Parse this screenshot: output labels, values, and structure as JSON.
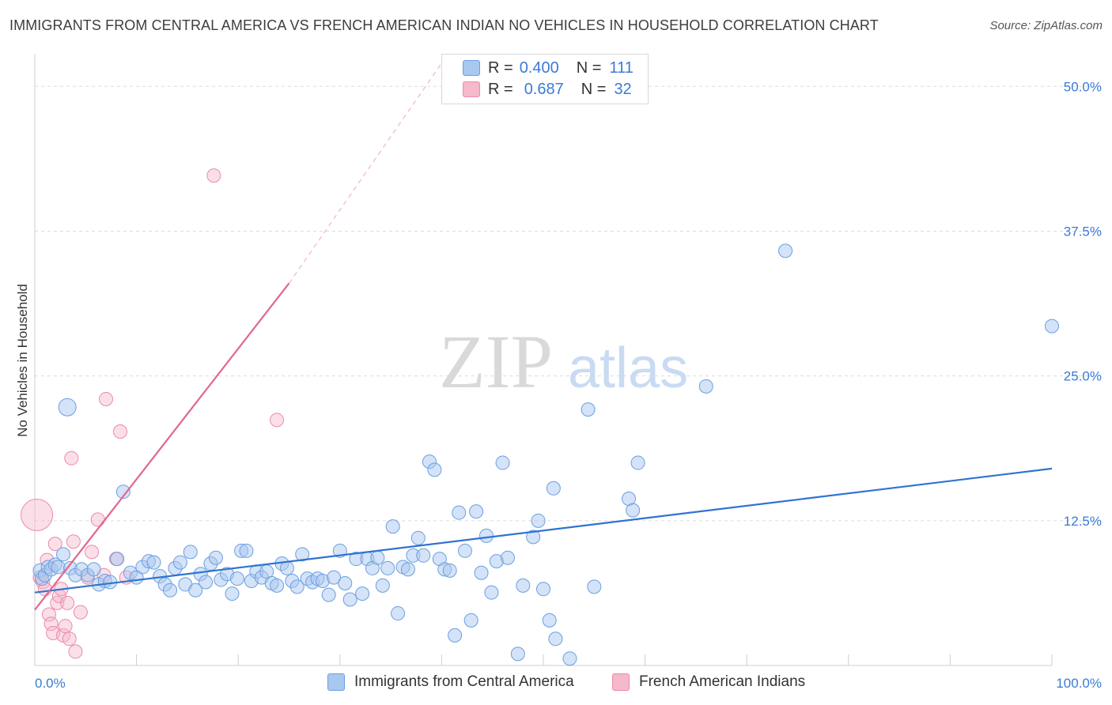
{
  "title": "IMMIGRANTS FROM CENTRAL AMERICA VS FRENCH AMERICAN INDIAN NO VEHICLES IN HOUSEHOLD CORRELATION CHART",
  "source": "Source: ZipAtlas.com",
  "watermark": {
    "zip": "ZIP",
    "atlas": "atlas"
  },
  "legend": {
    "rows": [
      {
        "r_label": "R =",
        "r_value": "0.400",
        "n_label": "N =",
        "n_value": "111"
      },
      {
        "r_label": "R =",
        "r_value": "0.687",
        "n_label": "N =",
        "n_value": "32"
      }
    ]
  },
  "colors": {
    "blue_fill": "#a9c8f0",
    "blue_stroke": "#6b9fe0",
    "blue_line": "#2f73d0",
    "pink_fill": "#f6b8cb",
    "pink_stroke": "#ec8aa8",
    "pink_line": "#e2668f",
    "tick_text": "#3a7bd5",
    "grid": "#dcdcdc"
  },
  "chart_data": {
    "type": "scatter",
    "title": "IMMIGRANTS FROM CENTRAL AMERICA VS FRENCH AMERICAN INDIAN NO VEHICLES IN HOUSEHOLD CORRELATION CHART",
    "xlabel": "",
    "ylabel": "No Vehicles in Household",
    "xlim": [
      0,
      100
    ],
    "ylim": [
      0,
      52
    ],
    "x_tick_labels": [
      "0.0%",
      "100.0%"
    ],
    "y_ticks": [
      12.5,
      25.0,
      37.5,
      50.0
    ],
    "y_tick_labels": [
      "12.5%",
      "25.0%",
      "37.5%",
      "50.0%"
    ],
    "grid": true,
    "legend_position": "top-center",
    "series": [
      {
        "name": "Immigrants from Central America",
        "trend": {
          "x": [
            0,
            100
          ],
          "y": [
            6.3,
            17.0
          ]
        },
        "points": [
          [
            0.5,
            8.2
          ],
          [
            0.7,
            7.5
          ],
          [
            1.0,
            7.8
          ],
          [
            1.3,
            8.5
          ],
          [
            1.6,
            8.3
          ],
          [
            2.0,
            8.7
          ],
          [
            2.3,
            8.5
          ],
          [
            2.8,
            9.6
          ],
          [
            3.2,
            22.3
          ],
          [
            3.5,
            8.4
          ],
          [
            4.0,
            7.8
          ],
          [
            4.6,
            8.3
          ],
          [
            5.2,
            7.8
          ],
          [
            5.8,
            8.3
          ],
          [
            6.3,
            7.0
          ],
          [
            6.9,
            7.3
          ],
          [
            7.4,
            7.2
          ],
          [
            8.1,
            9.2
          ],
          [
            8.7,
            15.0
          ],
          [
            9.4,
            8.0
          ],
          [
            10.0,
            7.6
          ],
          [
            10.6,
            8.5
          ],
          [
            11.2,
            9.0
          ],
          [
            11.7,
            8.9
          ],
          [
            12.3,
            7.7
          ],
          [
            12.8,
            7.0
          ],
          [
            13.3,
            6.5
          ],
          [
            13.8,
            8.4
          ],
          [
            14.3,
            8.9
          ],
          [
            14.8,
            7.0
          ],
          [
            15.3,
            9.8
          ],
          [
            15.8,
            6.5
          ],
          [
            16.3,
            7.9
          ],
          [
            16.8,
            7.2
          ],
          [
            17.3,
            8.8
          ],
          [
            17.8,
            9.3
          ],
          [
            18.3,
            7.4
          ],
          [
            18.9,
            7.9
          ],
          [
            19.4,
            6.2
          ],
          [
            19.9,
            7.5
          ],
          [
            20.3,
            9.9
          ],
          [
            20.8,
            9.9
          ],
          [
            21.3,
            7.3
          ],
          [
            21.8,
            8.1
          ],
          [
            22.3,
            7.6
          ],
          [
            22.8,
            8.1
          ],
          [
            23.3,
            7.1
          ],
          [
            23.8,
            6.9
          ],
          [
            24.3,
            8.8
          ],
          [
            24.8,
            8.4
          ],
          [
            25.3,
            7.3
          ],
          [
            25.8,
            6.8
          ],
          [
            26.3,
            9.6
          ],
          [
            26.8,
            7.5
          ],
          [
            27.3,
            7.2
          ],
          [
            27.8,
            7.5
          ],
          [
            28.3,
            7.3
          ],
          [
            28.9,
            6.1
          ],
          [
            29.4,
            7.6
          ],
          [
            30.0,
            9.9
          ],
          [
            30.5,
            7.1
          ],
          [
            31.0,
            5.7
          ],
          [
            31.6,
            9.2
          ],
          [
            32.2,
            6.2
          ],
          [
            32.7,
            9.2
          ],
          [
            33.2,
            8.4
          ],
          [
            33.7,
            9.3
          ],
          [
            34.2,
            6.9
          ],
          [
            34.7,
            8.4
          ],
          [
            35.2,
            12.0
          ],
          [
            35.7,
            4.5
          ],
          [
            36.2,
            8.5
          ],
          [
            36.7,
            8.3
          ],
          [
            37.2,
            9.5
          ],
          [
            37.7,
            11.0
          ],
          [
            38.2,
            9.5
          ],
          [
            38.8,
            17.6
          ],
          [
            39.3,
            16.9
          ],
          [
            39.8,
            9.2
          ],
          [
            40.3,
            8.3
          ],
          [
            40.8,
            8.2
          ],
          [
            41.3,
            2.6
          ],
          [
            41.7,
            13.2
          ],
          [
            42.3,
            9.9
          ],
          [
            42.9,
            3.9
          ],
          [
            43.4,
            13.3
          ],
          [
            43.9,
            8.0
          ],
          [
            44.4,
            11.2
          ],
          [
            44.9,
            6.3
          ],
          [
            45.4,
            9.0
          ],
          [
            46.0,
            17.5
          ],
          [
            46.5,
            9.3
          ],
          [
            47.5,
            1.0
          ],
          [
            48.0,
            6.9
          ],
          [
            49.0,
            11.1
          ],
          [
            49.5,
            12.5
          ],
          [
            50.0,
            6.6
          ],
          [
            50.6,
            3.9
          ],
          [
            51.0,
            15.3
          ],
          [
            51.2,
            2.3
          ],
          [
            52.6,
            0.6
          ],
          [
            54.4,
            22.1
          ],
          [
            55.0,
            6.8
          ],
          [
            58.4,
            14.4
          ],
          [
            58.8,
            13.4
          ],
          [
            59.3,
            17.5
          ],
          [
            66.0,
            24.1
          ],
          [
            73.8,
            35.8
          ],
          [
            100.0,
            29.3
          ]
        ]
      },
      {
        "name": "French American Indians",
        "trend": {
          "x": [
            0,
            25
          ],
          "y": [
            4.8,
            33.0
          ],
          "dashed_extension_to": [
            40,
            52
          ]
        },
        "points": [
          [
            0.2,
            13.0
          ],
          [
            0.5,
            7.6
          ],
          [
            0.8,
            7.2
          ],
          [
            1.0,
            6.6
          ],
          [
            1.2,
            9.1
          ],
          [
            1.4,
            4.4
          ],
          [
            1.6,
            3.6
          ],
          [
            1.8,
            2.8
          ],
          [
            2.0,
            10.5
          ],
          [
            2.2,
            5.4
          ],
          [
            2.4,
            6.0
          ],
          [
            2.6,
            6.6
          ],
          [
            2.8,
            2.6
          ],
          [
            3.0,
            3.4
          ],
          [
            3.2,
            5.4
          ],
          [
            3.4,
            2.3
          ],
          [
            3.6,
            17.9
          ],
          [
            3.8,
            10.7
          ],
          [
            4.0,
            1.2
          ],
          [
            4.5,
            4.6
          ],
          [
            5.2,
            7.6
          ],
          [
            5.6,
            9.8
          ],
          [
            6.2,
            12.6
          ],
          [
            6.8,
            7.8
          ],
          [
            7.0,
            23.0
          ],
          [
            8.0,
            9.2
          ],
          [
            8.4,
            20.2
          ],
          [
            9.0,
            7.6
          ],
          [
            17.6,
            42.3
          ],
          [
            23.8,
            21.2
          ]
        ]
      }
    ]
  },
  "bottom_legend": {
    "series_a": "Immigrants from Central America",
    "series_b": "French American Indians"
  }
}
